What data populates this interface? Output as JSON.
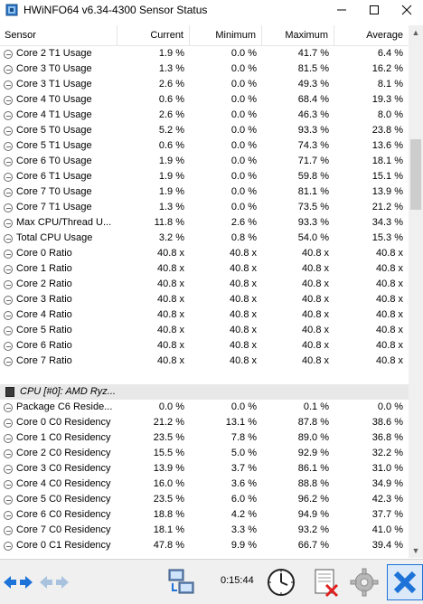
{
  "window": {
    "title": "HWiNFO64 v6.34-4300 Sensor Status"
  },
  "columns": {
    "sensor": "Sensor",
    "current": "Current",
    "minimum": "Minimum",
    "maximum": "Maximum",
    "average": "Average"
  },
  "rows": [
    {
      "type": "sensor",
      "label": "Core 2 T1 Usage",
      "current": "1.9 %",
      "min": "0.0 %",
      "max": "41.7 %",
      "avg": "6.4 %"
    },
    {
      "type": "sensor",
      "label": "Core 3 T0 Usage",
      "current": "1.3 %",
      "min": "0.0 %",
      "max": "81.5 %",
      "avg": "16.2 %"
    },
    {
      "type": "sensor",
      "label": "Core 3 T1 Usage",
      "current": "2.6 %",
      "min": "0.0 %",
      "max": "49.3 %",
      "avg": "8.1 %"
    },
    {
      "type": "sensor",
      "label": "Core 4 T0 Usage",
      "current": "0.6 %",
      "min": "0.0 %",
      "max": "68.4 %",
      "avg": "19.3 %"
    },
    {
      "type": "sensor",
      "label": "Core 4 T1 Usage",
      "current": "2.6 %",
      "min": "0.0 %",
      "max": "46.3 %",
      "avg": "8.0 %"
    },
    {
      "type": "sensor",
      "label": "Core 5 T0 Usage",
      "current": "5.2 %",
      "min": "0.0 %",
      "max": "93.3 %",
      "avg": "23.8 %"
    },
    {
      "type": "sensor",
      "label": "Core 5 T1 Usage",
      "current": "0.6 %",
      "min": "0.0 %",
      "max": "74.3 %",
      "avg": "13.6 %"
    },
    {
      "type": "sensor",
      "label": "Core 6 T0 Usage",
      "current": "1.9 %",
      "min": "0.0 %",
      "max": "71.7 %",
      "avg": "18.1 %"
    },
    {
      "type": "sensor",
      "label": "Core 6 T1 Usage",
      "current": "1.9 %",
      "min": "0.0 %",
      "max": "59.8 %",
      "avg": "15.1 %"
    },
    {
      "type": "sensor",
      "label": "Core 7 T0 Usage",
      "current": "1.9 %",
      "min": "0.0 %",
      "max": "81.1 %",
      "avg": "13.9 %"
    },
    {
      "type": "sensor",
      "label": "Core 7 T1 Usage",
      "current": "1.3 %",
      "min": "0.0 %",
      "max": "73.5 %",
      "avg": "21.2 %"
    },
    {
      "type": "sensor",
      "label": "Max CPU/Thread U...",
      "current": "11.8 %",
      "min": "2.6 %",
      "max": "93.3 %",
      "avg": "34.3 %"
    },
    {
      "type": "sensor",
      "label": "Total CPU Usage",
      "current": "3.2 %",
      "min": "0.8 %",
      "max": "54.0 %",
      "avg": "15.3 %"
    },
    {
      "type": "sensor",
      "label": "Core 0 Ratio",
      "current": "40.8 x",
      "min": "40.8 x",
      "max": "40.8 x",
      "avg": "40.8 x"
    },
    {
      "type": "sensor",
      "label": "Core 1 Ratio",
      "current": "40.8 x",
      "min": "40.8 x",
      "max": "40.8 x",
      "avg": "40.8 x"
    },
    {
      "type": "sensor",
      "label": "Core 2 Ratio",
      "current": "40.8 x",
      "min": "40.8 x",
      "max": "40.8 x",
      "avg": "40.8 x"
    },
    {
      "type": "sensor",
      "label": "Core 3 Ratio",
      "current": "40.8 x",
      "min": "40.8 x",
      "max": "40.8 x",
      "avg": "40.8 x"
    },
    {
      "type": "sensor",
      "label": "Core 4 Ratio",
      "current": "40.8 x",
      "min": "40.8 x",
      "max": "40.8 x",
      "avg": "40.8 x"
    },
    {
      "type": "sensor",
      "label": "Core 5 Ratio",
      "current": "40.8 x",
      "min": "40.8 x",
      "max": "40.8 x",
      "avg": "40.8 x"
    },
    {
      "type": "sensor",
      "label": "Core 6 Ratio",
      "current": "40.8 x",
      "min": "40.8 x",
      "max": "40.8 x",
      "avg": "40.8 x"
    },
    {
      "type": "sensor",
      "label": "Core 7 Ratio",
      "current": "40.8 x",
      "min": "40.8 x",
      "max": "40.8 x",
      "avg": "40.8 x"
    },
    {
      "type": "blank",
      "label": "",
      "current": "",
      "min": "",
      "max": "",
      "avg": ""
    },
    {
      "type": "group",
      "label": "CPU [#0]: AMD Ryz...",
      "current": "",
      "min": "",
      "max": "",
      "avg": ""
    },
    {
      "type": "sensor",
      "label": "Package C6 Reside...",
      "current": "0.0 %",
      "min": "0.0 %",
      "max": "0.1 %",
      "avg": "0.0 %"
    },
    {
      "type": "sensor",
      "label": "Core 0 C0 Residency",
      "current": "21.2 %",
      "min": "13.1 %",
      "max": "87.8 %",
      "avg": "38.6 %"
    },
    {
      "type": "sensor",
      "label": "Core 1 C0 Residency",
      "current": "23.5 %",
      "min": "7.8 %",
      "max": "89.0 %",
      "avg": "36.8 %"
    },
    {
      "type": "sensor",
      "label": "Core 2 C0 Residency",
      "current": "15.5 %",
      "min": "5.0 %",
      "max": "92.9 %",
      "avg": "32.2 %"
    },
    {
      "type": "sensor",
      "label": "Core 3 C0 Residency",
      "current": "13.9 %",
      "min": "3.7 %",
      "max": "86.1 %",
      "avg": "31.0 %"
    },
    {
      "type": "sensor",
      "label": "Core 4 C0 Residency",
      "current": "16.0 %",
      "min": "3.6 %",
      "max": "88.8 %",
      "avg": "34.9 %"
    },
    {
      "type": "sensor",
      "label": "Core 5 C0 Residency",
      "current": "23.5 %",
      "min": "6.0 %",
      "max": "96.2 %",
      "avg": "42.3 %"
    },
    {
      "type": "sensor",
      "label": "Core 6 C0 Residency",
      "current": "18.8 %",
      "min": "4.2 %",
      "max": "94.9 %",
      "avg": "37.7 %"
    },
    {
      "type": "sensor",
      "label": "Core 7 C0 Residency",
      "current": "18.1 %",
      "min": "3.3 %",
      "max": "93.2 %",
      "avg": "41.0 %"
    },
    {
      "type": "sensor",
      "label": "Core 0 C1 Residency",
      "current": "47.8 %",
      "min": "9.9 %",
      "max": "66.7 %",
      "avg": "39.4 %"
    }
  ],
  "toolbar": {
    "elapsed": "0:15:44"
  },
  "colors": {
    "accent_blue": "#1e73d8",
    "close_red": "#e02020",
    "row_group_bg": "#e8e8e8"
  }
}
